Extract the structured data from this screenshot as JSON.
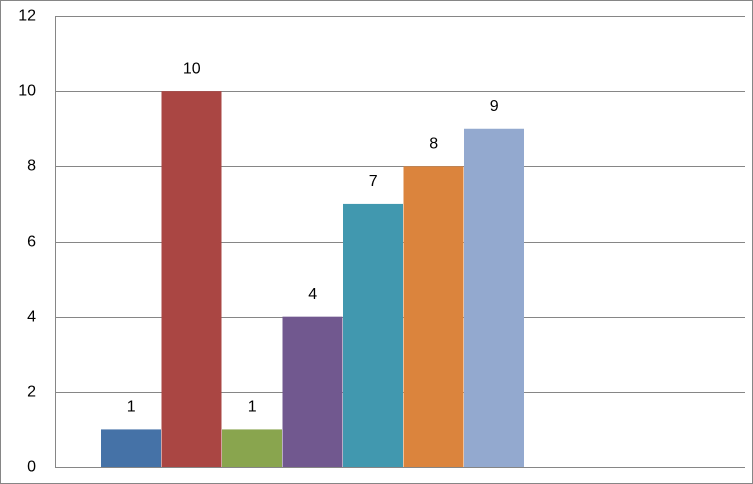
{
  "chart_data": {
    "type": "bar",
    "values": [
      1,
      10,
      1,
      4,
      7,
      8,
      9
    ],
    "colors": [
      "#4572a7",
      "#aa4643",
      "#89a54e",
      "#71588f",
      "#4198af",
      "#db843d",
      "#93a9cf"
    ],
    "ylim": [
      0,
      12
    ],
    "yticks": [
      0,
      2,
      4,
      6,
      8,
      10,
      12
    ],
    "grid": true
  }
}
